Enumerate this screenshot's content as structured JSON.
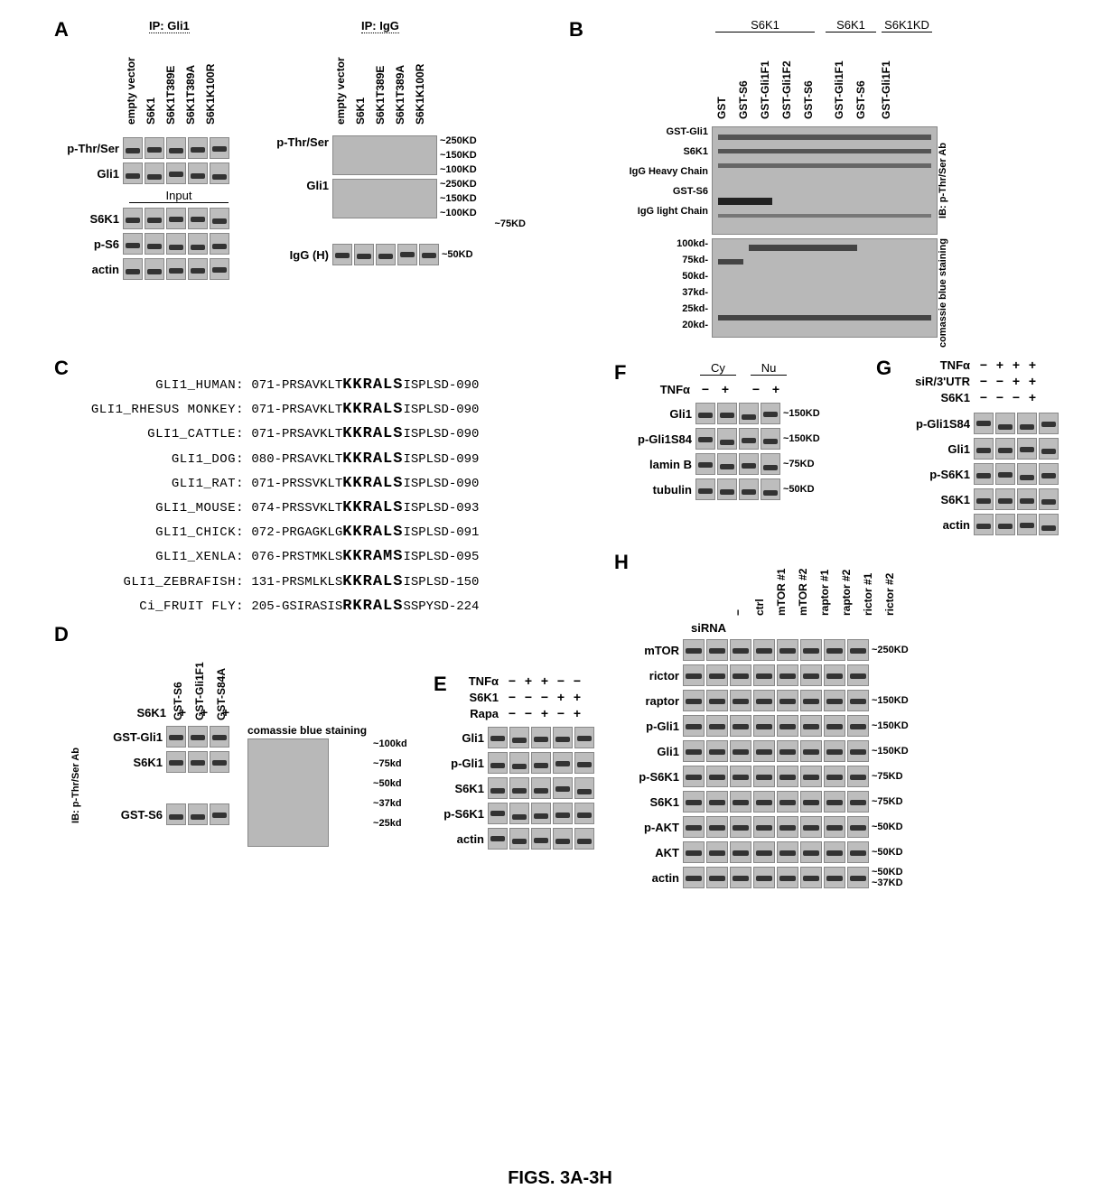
{
  "figure_caption": "FIGS. 3A-3H",
  "colors": {
    "background": "#ffffff",
    "blot_bg": "#b8b8b8",
    "band_dark": "#333333",
    "text": "#000000"
  },
  "A": {
    "letter": "A",
    "ip_left": "IP: Gli1",
    "ip_right": "IP: IgG",
    "lanes": [
      "empty vector",
      "S6K1",
      "S6K1T389E",
      "S6K1T389A",
      "S6K1K100R"
    ],
    "left_rows": [
      "p-Thr/Ser",
      "Gli1"
    ],
    "input_header": "Input",
    "input_rows": [
      "S6K1",
      "p-S6",
      "actin"
    ],
    "right_rows": [
      "p-Thr/Ser",
      "Gli1",
      "IgG (H)"
    ],
    "right_sizes_top": [
      "~250KD",
      "~150KD",
      "~100KD"
    ],
    "right_sizes_mid": [
      "~250KD",
      "~150KD",
      "~100KD"
    ],
    "right_sizes_low": [
      "~75KD",
      "~50KD"
    ]
  },
  "B": {
    "letter": "B",
    "top_groups": [
      "S6K1",
      "S6K1",
      "S6K1KD"
    ],
    "lanes": [
      "GST",
      "GST-S6",
      "GST-Gli1F1",
      "GST-Gli1F2",
      "GST-S6",
      "GST-Gli1F1",
      "GST-S6",
      "GST-Gli1F1"
    ],
    "row_labels_top": [
      "GST-Gli1",
      "S6K1",
      "IgG Heavy Chain",
      "GST-S6",
      "IgG light Chain"
    ],
    "row_labels_mw": [
      "100kd-",
      "75kd-",
      "50kd-",
      "37kd-",
      "25kd-",
      "20kd-"
    ],
    "side_top": "IB: p-Thr/Ser Ab",
    "side_bottom": "comassie blue staining"
  },
  "C": {
    "letter": "C",
    "rows": [
      {
        "name": "GLI1_HUMAN:",
        "pre": "071-PRSAVKLT",
        "motif": "KKRALS",
        "post": "ISPLSD-090"
      },
      {
        "name": "GLI1_RHESUS MONKEY:",
        "pre": "071-PRSAVKLT",
        "motif": "KKRALS",
        "post": "ISPLSD-090"
      },
      {
        "name": "GLI1_CATTLE:",
        "pre": "071-PRSAVKLT",
        "motif": "KKRALS",
        "post": "ISPLSD-090"
      },
      {
        "name": "GLI1_DOG:",
        "pre": "080-PRSAVKLT",
        "motif": "KKRALS",
        "post": "ISPLSD-099"
      },
      {
        "name": "GLI1_RAT:",
        "pre": "071-PRSSVKLT",
        "motif": "KKRALS",
        "post": "ISPLSD-090"
      },
      {
        "name": "GLI1_MOUSE:",
        "pre": "074-PRSSVKLT",
        "motif": "KKRALS",
        "post": "ISPLSD-093"
      },
      {
        "name": "GLI1_CHICK:",
        "pre": "072-PRGAGKLG",
        "motif": "KKRALS",
        "post": "ISPLSD-091"
      },
      {
        "name": "GLI1_XENLA:",
        "pre": "076-PRSTMKLS",
        "motif": "KKRAMS",
        "post": "ISPLSD-095"
      },
      {
        "name": "GLI1_ZEBRAFISH:",
        "pre": "131-PRSMLKLS",
        "motif": "KKRALS",
        "post": "ISPLSD-150"
      },
      {
        "name": "Ci_FRUIT FLY:",
        "pre": "205-GSIRASIS",
        "motif": "RKRALS",
        "post": "SSPYSD-224"
      }
    ]
  },
  "D": {
    "letter": "D",
    "lanes": [
      "GST-S6",
      "GST-Gli1F1",
      "GST-S84A"
    ],
    "s6k1_row": "S6K1",
    "s6k1_syms": [
      "+",
      "+",
      "+"
    ],
    "row_labels": [
      "GST-Gli1",
      "S6K1",
      "GST-S6"
    ],
    "side": "IB: p-Thr/Ser Ab",
    "right_header": "comassie blue staining",
    "mw": [
      "~100kd",
      "~75kd",
      "~50kd",
      "~37kd",
      "~25kd"
    ]
  },
  "E": {
    "letter": "E",
    "conditions": [
      {
        "label": "TNFα",
        "syms": [
          "−",
          "+",
          "+",
          "−",
          "−"
        ]
      },
      {
        "label": "S6K1",
        "syms": [
          "−",
          "−",
          "−",
          "+",
          "+"
        ]
      },
      {
        "label": "Rapa",
        "syms": [
          "−",
          "−",
          "+",
          "−",
          "+"
        ]
      }
    ],
    "rows": [
      "Gli1",
      "p-Gli1",
      "S6K1",
      "p-S6K1",
      "actin"
    ]
  },
  "F": {
    "letter": "F",
    "cy": "Cy",
    "nu": "Nu",
    "tnfa": "TNFα",
    "tnfa_syms": [
      "−",
      "+",
      "−",
      "+"
    ],
    "rows": [
      "Gli1",
      "p-Gli1S84",
      "lamin B",
      "tubulin"
    ],
    "sizes": [
      "~150KD",
      "~150KD",
      "~75KD",
      "~50KD"
    ]
  },
  "G": {
    "letter": "G",
    "conditions": [
      {
        "label": "TNFα",
        "syms": [
          "−",
          "+",
          "+",
          "+"
        ]
      },
      {
        "label": "siR/3'UTR",
        "syms": [
          "−",
          "−",
          "+",
          "+"
        ]
      },
      {
        "label": "S6K1",
        "syms": [
          "−",
          "−",
          "−",
          "+"
        ]
      }
    ],
    "rows": [
      "p-Gli1S84",
      "Gli1",
      "p-S6K1",
      "S6K1",
      "actin"
    ]
  },
  "H": {
    "letter": "H",
    "sirna_label": "siRNA",
    "lanes": [
      "−",
      "ctrl",
      "mTOR #1",
      "mTOR #2",
      "raptor #1",
      "raptor #2",
      "rictor #1",
      "rictor #2"
    ],
    "rows": [
      {
        "label": "mTOR",
        "size": "~250KD"
      },
      {
        "label": "rictor",
        "size": ""
      },
      {
        "label": "raptor",
        "size": "~150KD"
      },
      {
        "label": "p-Gli1",
        "size": "~150KD"
      },
      {
        "label": "Gli1",
        "size": "~150KD"
      },
      {
        "label": "p-S6K1",
        "size": "~75KD"
      },
      {
        "label": "S6K1",
        "size": "~75KD"
      },
      {
        "label": "p-AKT",
        "size": "~50KD"
      },
      {
        "label": "AKT",
        "size": "~50KD"
      },
      {
        "label": "actin",
        "size": "~50KD\n~37KD"
      }
    ]
  }
}
